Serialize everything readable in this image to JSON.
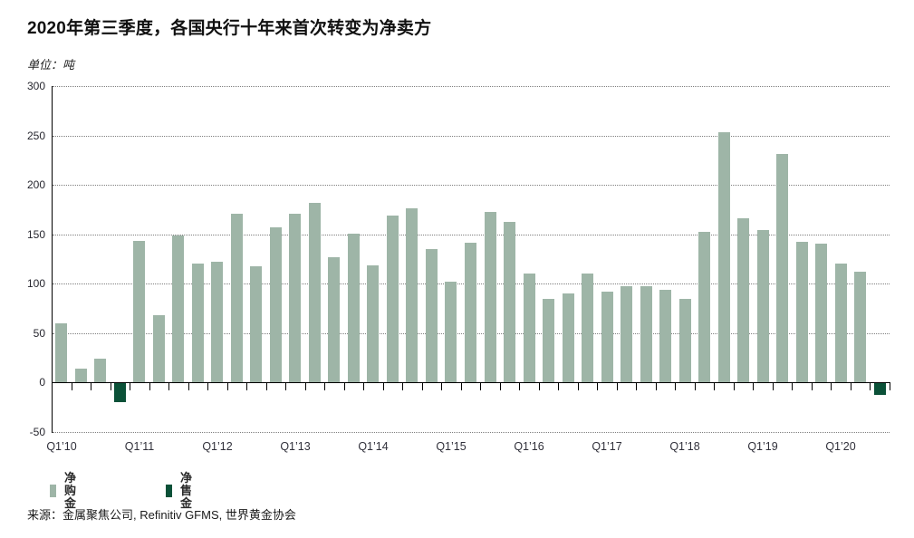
{
  "header": {
    "title": "2020年第三季度，各国央行十年来首次转变为净卖方",
    "unit_label": "单位：吨"
  },
  "chart_data": {
    "type": "bar",
    "title": "2020年第三季度，各国央行十年来首次转变为净卖方",
    "ylabel": "单位：吨",
    "categories": [
      "Q1’10",
      "Q2’10",
      "Q3’10",
      "Q4’10",
      "Q1’11",
      "Q2’11",
      "Q3’11",
      "Q4’11",
      "Q1’12",
      "Q2’12",
      "Q3’12",
      "Q4’12",
      "Q1’13",
      "Q2’13",
      "Q3’13",
      "Q4’13",
      "Q1’14",
      "Q2’14",
      "Q3’14",
      "Q4’14",
      "Q1’15",
      "Q2’15",
      "Q3’15",
      "Q4’15",
      "Q1’16",
      "Q2’16",
      "Q3’16",
      "Q4’16",
      "Q1’17",
      "Q2’17",
      "Q3’17",
      "Q4’17",
      "Q1’18",
      "Q2’18",
      "Q3’18",
      "Q4’18",
      "Q1’19",
      "Q2’19",
      "Q3’19",
      "Q4’19",
      "Q1’20",
      "Q2’20",
      "Q3’20"
    ],
    "values": [
      60,
      14,
      24,
      -19,
      143,
      68,
      148,
      120,
      122,
      170,
      117,
      157,
      170,
      181,
      126,
      150,
      118,
      169,
      176,
      135,
      102,
      141,
      172,
      162,
      110,
      84,
      90,
      110,
      92,
      97,
      97,
      93,
      84,
      152,
      253,
      166,
      154,
      231,
      142,
      140,
      120,
      112,
      -12
    ],
    "ylim": [
      -50,
      300
    ],
    "yticks": [
      300,
      250,
      200,
      150,
      100,
      50,
      0,
      -50
    ],
    "xtick_labels": [
      "Q1’10",
      "Q1’11",
      "Q1’12",
      "Q1’13",
      "Q1’14",
      "Q1’15",
      "Q1’16",
      "Q1’17",
      "Q1’18",
      "Q1’19",
      "Q1’20"
    ],
    "xtick_every": 4,
    "grid": "horizontal-dotted",
    "legend_position": "bottom-left",
    "colors": {
      "positive": "#9eb5a7",
      "negative": "#0b5138",
      "axis": "#000000",
      "grid": "#7f7f7f"
    }
  },
  "legend": {
    "items": [
      {
        "label": "净购金",
        "color": "#9eb5a7"
      },
      {
        "label": "净售金",
        "color": "#0b5138"
      }
    ]
  },
  "footer": {
    "source": "来源：金属聚焦公司, Refinitiv GFMS, 世界黄金协会"
  }
}
